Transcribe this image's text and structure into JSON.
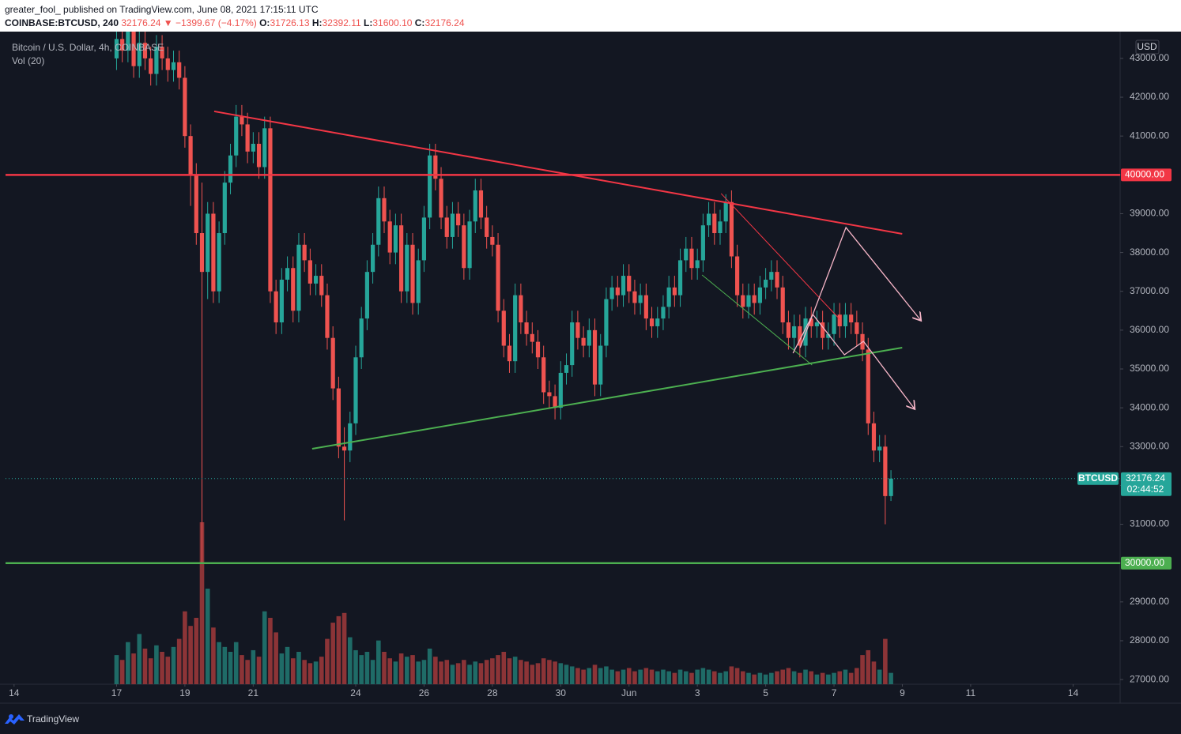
{
  "header": {
    "line1": "greater_fool_ published on TradingView.com, June 08, 2021 17:15:11 UTC",
    "symbol": "COINBASE:BTCUSD, 240",
    "price": "32176.24",
    "change": "▼ −1399.67 (−4.17%)",
    "ohlc": [
      {
        "k": "O:",
        "v": "31726.13"
      },
      {
        "k": "H:",
        "v": "32392.11"
      },
      {
        "k": "L:",
        "v": "31600.10"
      },
      {
        "k": "C:",
        "v": "32176.24"
      }
    ]
  },
  "footer": {
    "brand": "TradingView"
  },
  "chart_data": {
    "type": "candlestick",
    "title": "Bitcoin / U.S. Dollar, 4h, COINBASE",
    "subtitle": "Vol (20)",
    "currency": "USD",
    "up_color": "#26a69a",
    "down_color": "#ef5350",
    "grid": false,
    "xlim": [
      -6,
      777
    ],
    "ylim": [
      26880,
      43690
    ],
    "xticks": [
      {
        "value": 0,
        "label": "14"
      },
      {
        "value": 72,
        "label": "17"
      },
      {
        "value": 120,
        "label": "19"
      },
      {
        "value": 168,
        "label": "21"
      },
      {
        "value": 240,
        "label": "24"
      },
      {
        "value": 288,
        "label": "26"
      },
      {
        "value": 336,
        "label": "28"
      },
      {
        "value": 384,
        "label": "30"
      },
      {
        "value": 432,
        "label": "Jun"
      },
      {
        "value": 480,
        "label": "3"
      },
      {
        "value": 528,
        "label": "5"
      },
      {
        "value": 576,
        "label": "7"
      },
      {
        "value": 624,
        "label": "9"
      },
      {
        "value": 672,
        "label": "11"
      },
      {
        "value": 744,
        "label": "14"
      }
    ],
    "yticks": [
      {
        "value": 43000,
        "label": "43000.00"
      },
      {
        "value": 42000,
        "label": "42000.00"
      },
      {
        "value": 41000,
        "label": "41000.00"
      },
      {
        "value": 40000,
        "label": "40000.00"
      },
      {
        "value": 39000,
        "label": "39000.00"
      },
      {
        "value": 38000,
        "label": "38000.00"
      },
      {
        "value": 37000,
        "label": "37000.00"
      },
      {
        "value": 36000,
        "label": "36000.00"
      },
      {
        "value": 35000,
        "label": "35000.00"
      },
      {
        "value": 34000,
        "label": "34000.00"
      },
      {
        "value": 33000,
        "label": "33000.00"
      },
      {
        "value": 32000,
        "label": "32000.00"
      },
      {
        "value": 31000,
        "label": "31000.00"
      },
      {
        "value": 30000,
        "label": "30000.00"
      },
      {
        "value": 29000,
        "label": "29000.00"
      },
      {
        "value": 28000,
        "label": "28000.00"
      },
      {
        "value": 27000,
        "label": "27000.00"
      }
    ],
    "levels": [
      {
        "value": 40000,
        "label": "40000.00",
        "color": "#f23645"
      },
      {
        "value": 30000,
        "label": "30000.00",
        "color": "#4caf50"
      }
    ],
    "last": {
      "symbol": "BTCUSD",
      "value": 32176.24,
      "label": "32176.24",
      "countdown": "02:44:52"
    },
    "drawings": [
      {
        "color": "#f23645",
        "width": 2,
        "arrow": false,
        "points": [
          [
            140.6,
            41636
          ],
          [
            623.9,
            38481
          ]
        ]
      },
      {
        "color": "#4caf50",
        "width": 2,
        "arrow": false,
        "points": [
          [
            209.4,
            32944
          ],
          [
            623.9,
            35550
          ]
        ]
      },
      {
        "color": "#f23645",
        "width": 1,
        "arrow": false,
        "points": [
          [
            496.7,
            39519
          ],
          [
            580,
            36282
          ]
        ]
      },
      {
        "color": "#4caf50",
        "width": 1,
        "arrow": false,
        "points": [
          [
            483.3,
            37422
          ],
          [
            560.6,
            35102
          ]
        ]
      },
      {
        "color": "#f7b6c8",
        "width": 1.3,
        "arrow": true,
        "points": [
          [
            547.2,
            35407
          ],
          [
            561.1,
            36405
          ],
          [
            583.3,
            35366
          ],
          [
            596.7,
            35712
          ],
          [
            632.8,
            33962
          ]
        ]
      },
      {
        "color": "#f7b6c8",
        "width": 1.3,
        "arrow": true,
        "points": [
          [
            552.2,
            35550
          ],
          [
            584.4,
            38644
          ],
          [
            637.2,
            36242
          ]
        ]
      }
    ],
    "x": [
      72,
      76,
      80,
      84,
      88,
      92,
      96,
      100,
      104,
      108,
      112,
      116,
      120,
      124,
      128,
      132,
      136,
      140,
      144,
      148,
      152,
      156,
      160,
      164,
      168,
      172,
      176,
      180,
      184,
      188,
      192,
      196,
      200,
      204,
      208,
      212,
      216,
      220,
      224,
      228,
      232,
      236,
      240,
      244,
      248,
      252,
      256,
      260,
      264,
      268,
      272,
      276,
      280,
      284,
      288,
      292,
      296,
      300,
      304,
      308,
      312,
      316,
      320,
      324,
      328,
      332,
      336,
      340,
      344,
      348,
      352,
      356,
      360,
      364,
      368,
      372,
      376,
      380,
      384,
      388,
      392,
      396,
      400,
      404,
      408,
      412,
      416,
      420,
      424,
      428,
      432,
      436,
      440,
      444,
      448,
      452,
      456,
      460,
      464,
      468,
      472,
      476,
      480,
      484,
      488,
      492,
      496,
      500,
      504,
      508,
      512,
      516,
      520,
      524,
      528,
      532,
      536,
      540,
      544,
      548,
      552,
      556,
      560,
      564,
      568,
      572,
      576,
      580,
      584,
      588,
      592,
      596,
      600,
      604,
      608,
      612,
      616
    ],
    "candles": [
      [
        43000,
        43800,
        42700,
        43500
      ],
      [
        43500,
        43800,
        42900,
        43200
      ],
      [
        43200,
        44100,
        42900,
        43800
      ],
      [
        43800,
        44100,
        42500,
        42800
      ],
      [
        42800,
        43700,
        42500,
        43400
      ],
      [
        43400,
        43700,
        42700,
        43000
      ],
      [
        43000,
        43300,
        42300,
        42600
      ],
      [
        42600,
        43600,
        42300,
        43300
      ],
      [
        43300,
        43600,
        42700,
        43000
      ],
      [
        43000,
        43300,
        42400,
        42700
      ],
      [
        42700,
        43200,
        42400,
        42900
      ],
      [
        42900,
        43200,
        42200,
        42500
      ],
      [
        42500,
        42800,
        40700,
        41000
      ],
      [
        41000,
        41300,
        39200,
        40000
      ],
      [
        40000,
        40300,
        38200,
        38500
      ],
      [
        38500,
        39800,
        30000,
        37500
      ],
      [
        37500,
        39300,
        36800,
        39000
      ],
      [
        39000,
        39300,
        36700,
        37000
      ],
      [
        37000,
        38800,
        36700,
        38500
      ],
      [
        38500,
        40100,
        38200,
        39800
      ],
      [
        39800,
        40800,
        39500,
        40500
      ],
      [
        40500,
        41800,
        40200,
        41500
      ],
      [
        41500,
        41800,
        41000,
        41300
      ],
      [
        41300,
        41600,
        40300,
        40600
      ],
      [
        40600,
        41100,
        40300,
        40800
      ],
      [
        40800,
        41100,
        39900,
        40200
      ],
      [
        40200,
        41500,
        39900,
        41200
      ],
      [
        41200,
        41500,
        36700,
        37000
      ],
      [
        37000,
        37300,
        35900,
        36200
      ],
      [
        36200,
        37600,
        35900,
        37300
      ],
      [
        37300,
        37900,
        37000,
        37600
      ],
      [
        37600,
        37900,
        36200,
        36500
      ],
      [
        36500,
        38500,
        36200,
        38200
      ],
      [
        38200,
        38500,
        37500,
        37800
      ],
      [
        37800,
        38100,
        36900,
        37200
      ],
      [
        37200,
        37700,
        36900,
        37400
      ],
      [
        37400,
        37700,
        36600,
        36900
      ],
      [
        36900,
        37200,
        35500,
        35800
      ],
      [
        35800,
        36100,
        34200,
        34500
      ],
      [
        34500,
        34800,
        32700,
        33000
      ],
      [
        33000,
        33500,
        31100,
        32900
      ],
      [
        32900,
        33900,
        32600,
        33600
      ],
      [
        33600,
        35600,
        33300,
        35300
      ],
      [
        35300,
        36600,
        35000,
        36300
      ],
      [
        36300,
        37800,
        36000,
        37500
      ],
      [
        37500,
        38500,
        37200,
        38200
      ],
      [
        38200,
        39700,
        37900,
        39400
      ],
      [
        39400,
        39700,
        38500,
        38800
      ],
      [
        38800,
        39100,
        37700,
        38000
      ],
      [
        38000,
        39000,
        37700,
        38700
      ],
      [
        38700,
        39000,
        36700,
        37000
      ],
      [
        37000,
        38500,
        36700,
        38200
      ],
      [
        38200,
        38500,
        36400,
        36700
      ],
      [
        36700,
        38100,
        36400,
        37800
      ],
      [
        37800,
        39200,
        37500,
        38900
      ],
      [
        38900,
        40800,
        38600,
        40500
      ],
      [
        40500,
        40800,
        39600,
        39900
      ],
      [
        39900,
        40200,
        38600,
        38900
      ],
      [
        38900,
        39200,
        38100,
        38400
      ],
      [
        38400,
        39300,
        38100,
        39000
      ],
      [
        39000,
        39300,
        38400,
        38700
      ],
      [
        38700,
        39000,
        37300,
        37600
      ],
      [
        37600,
        39100,
        37300,
        38800
      ],
      [
        38800,
        39900,
        38500,
        39600
      ],
      [
        39600,
        39900,
        38600,
        38900
      ],
      [
        38900,
        39200,
        38100,
        38400
      ],
      [
        38400,
        38700,
        37900,
        38200
      ],
      [
        38200,
        38500,
        36200,
        36500
      ],
      [
        36500,
        36800,
        35300,
        35600
      ],
      [
        35600,
        35900,
        34900,
        35200
      ],
      [
        35200,
        37200,
        34900,
        36900
      ],
      [
        36900,
        37200,
        35900,
        36200
      ],
      [
        36200,
        36500,
        35600,
        35900
      ],
      [
        35900,
        36200,
        35400,
        35700
      ],
      [
        35700,
        36000,
        35000,
        35300
      ],
      [
        35300,
        35600,
        34100,
        34400
      ],
      [
        34400,
        34700,
        34000,
        34300
      ],
      [
        34300,
        34600,
        33700,
        34000
      ],
      [
        34000,
        35200,
        33700,
        34900
      ],
      [
        34900,
        35400,
        34600,
        35100
      ],
      [
        35100,
        36500,
        34800,
        36200
      ],
      [
        36200,
        36500,
        35500,
        35800
      ],
      [
        35800,
        36100,
        35300,
        35600
      ],
      [
        35600,
        36300,
        35300,
        36000
      ],
      [
        36000,
        36300,
        34300,
        34600
      ],
      [
        34600,
        35900,
        34300,
        35600
      ],
      [
        35600,
        37100,
        35300,
        36800
      ],
      [
        36800,
        37400,
        36500,
        37100
      ],
      [
        37100,
        37400,
        36600,
        36900
      ],
      [
        36900,
        37700,
        36600,
        37400
      ],
      [
        37400,
        37700,
        36700,
        37000
      ],
      [
        37000,
        37300,
        36400,
        36700
      ],
      [
        36700,
        37200,
        36400,
        36900
      ],
      [
        36900,
        37200,
        36000,
        36300
      ],
      [
        36300,
        36600,
        35800,
        36100
      ],
      [
        36100,
        36600,
        35800,
        36300
      ],
      [
        36300,
        36900,
        36000,
        36600
      ],
      [
        36600,
        37400,
        36300,
        37100
      ],
      [
        37100,
        37400,
        36600,
        36900
      ],
      [
        36900,
        38100,
        36600,
        37800
      ],
      [
        37800,
        38400,
        37500,
        38100
      ],
      [
        38100,
        38400,
        37300,
        37600
      ],
      [
        37600,
        38100,
        37300,
        37800
      ],
      [
        37800,
        39000,
        37500,
        38700
      ],
      [
        38700,
        39300,
        38400,
        39000
      ],
      [
        39000,
        39300,
        38200,
        38500
      ],
      [
        38500,
        39100,
        38200,
        38800
      ],
      [
        38800,
        39500,
        38500,
        39300
      ],
      [
        39300,
        39600,
        37600,
        37900
      ],
      [
        37900,
        38200,
        36600,
        36900
      ],
      [
        36900,
        37200,
        36300,
        36600
      ],
      [
        36600,
        37200,
        36300,
        36900
      ],
      [
        36900,
        37200,
        36400,
        36700
      ],
      [
        36700,
        37400,
        36400,
        37100
      ],
      [
        37100,
        37600,
        36800,
        37300
      ],
      [
        37300,
        37800,
        37000,
        37500
      ],
      [
        37500,
        37800,
        36800,
        37100
      ],
      [
        37100,
        37400,
        35900,
        36200
      ],
      [
        36200,
        36500,
        35500,
        35800
      ],
      [
        35800,
        36400,
        35500,
        36100
      ],
      [
        36100,
        36400,
        35300,
        35600
      ],
      [
        35600,
        36600,
        35300,
        36300
      ],
      [
        36300,
        36600,
        35800,
        36100
      ],
      [
        36100,
        36500,
        35800,
        36200
      ],
      [
        36200,
        36500,
        35500,
        35800
      ],
      [
        35800,
        36200,
        35500,
        35900
      ],
      [
        35900,
        36700,
        35600,
        36400
      ],
      [
        36400,
        36700,
        35800,
        36100
      ],
      [
        36100,
        36700,
        35800,
        36400
      ],
      [
        36400,
        36700,
        35900,
        36200
      ],
      [
        36200,
        36500,
        35600,
        35900
      ],
      [
        35900,
        36200,
        35200,
        35500
      ],
      [
        35500,
        35800,
        33300,
        33600
      ],
      [
        33600,
        33900,
        32600,
        32900
      ],
      [
        32900,
        33300,
        32600,
        33000
      ],
      [
        33000,
        33300,
        31000,
        31726.13
      ],
      [
        31726.13,
        32392.11,
        31600.1,
        32176.24
      ]
    ],
    "volume": [
      1800,
      1500,
      2600,
      1900,
      3100,
      2200,
      1600,
      2400,
      2000,
      1700,
      2300,
      2800,
      4500,
      3600,
      4100,
      10000,
      5900,
      3500,
      2600,
      2300,
      2000,
      2600,
      1800,
      1500,
      2100,
      1700,
      4500,
      4100,
      3200,
      1900,
      2300,
      1600,
      2000,
      1500,
      1300,
      1400,
      1700,
      2800,
      3800,
      4200,
      4400,
      2900,
      2100,
      1800,
      2000,
      1500,
      2700,
      2000,
      1600,
      1400,
      1900,
      1700,
      1800,
      1400,
      1500,
      2200,
      1700,
      1400,
      1500,
      1200,
      1300,
      1500,
      1200,
      1400,
      1300,
      1500,
      1600,
      1800,
      2000,
      1600,
      1700,
      1500,
      1400,
      1200,
      1300,
      1600,
      1500,
      1400,
      1300,
      1200,
      1100,
      1000,
      900,
      1000,
      1200,
      1000,
      1100,
      900,
      800,
      900,
      1000,
      800,
      900,
      1000,
      900,
      800,
      900,
      800,
      700,
      900,
      800,
      700,
      900,
      1000,
      900,
      800,
      700,
      800,
      1100,
      1000,
      800,
      700,
      600,
      700,
      600,
      700,
      800,
      900,
      1000,
      800,
      700,
      900,
      800,
      600,
      700,
      600,
      700,
      800,
      900,
      700,
      1000,
      1800,
      2100,
      1400,
      900,
      2800,
      700
    ]
  }
}
